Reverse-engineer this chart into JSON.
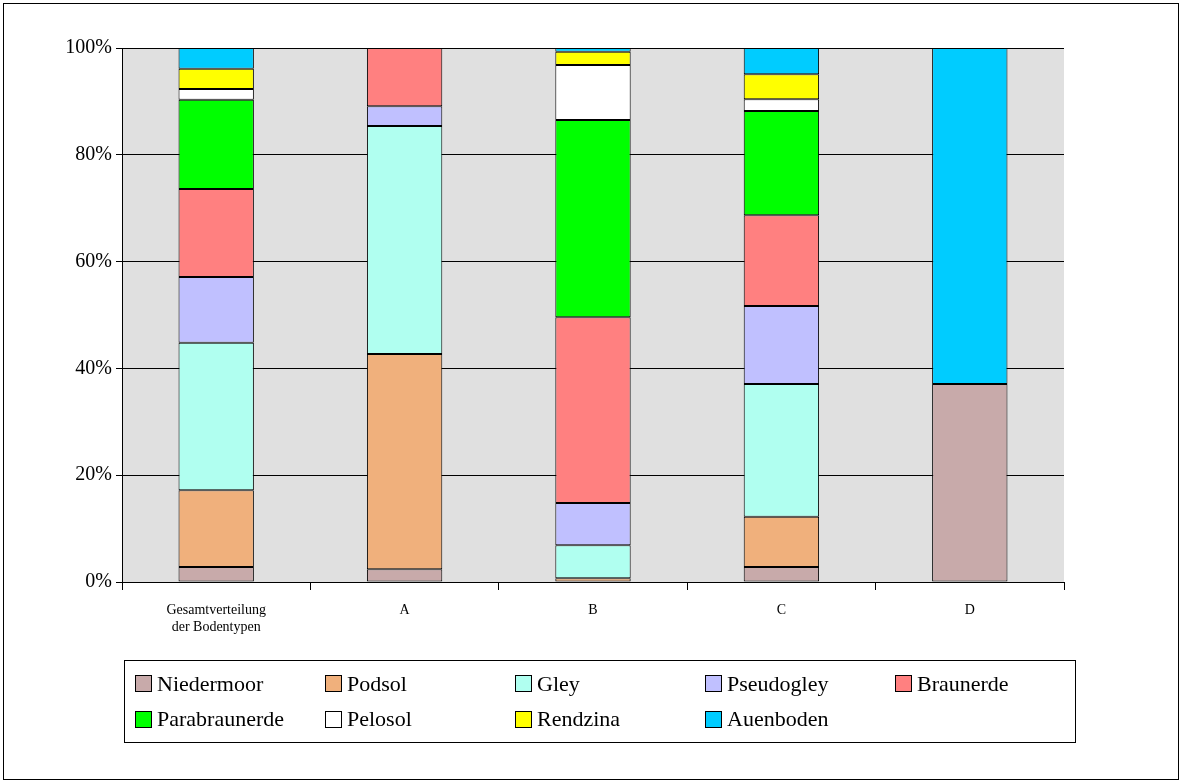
{
  "chart_data": {
    "type": "bar",
    "stacked": true,
    "categories": [
      "Gesamtverteilung der Bodentypen",
      "A",
      "B",
      "C",
      "D"
    ],
    "series": [
      {
        "name": "Niedermoor",
        "color": "#c8aaaa",
        "values": [
          2.8,
          2.4,
          0,
          2.8,
          37.1
        ]
      },
      {
        "name": "Podsol",
        "color": "#f0b07c",
        "values": [
          14.4,
          40.3,
          0.7,
          9.4,
          0
        ]
      },
      {
        "name": "Gley",
        "color": "#b0fff0",
        "values": [
          27.6,
          42.7,
          6.2,
          24.9,
          0
        ]
      },
      {
        "name": "Pseudogley",
        "color": "#c0c0ff",
        "values": [
          12.3,
          3.7,
          7.9,
          14.6,
          0
        ]
      },
      {
        "name": "Braunerde",
        "color": "#ff8080",
        "values": [
          16.5,
          10.9,
          34.8,
          17.0,
          0
        ]
      },
      {
        "name": "Parabraunerde",
        "color": "#00ff00",
        "values": [
          16.7,
          0,
          36.9,
          19.5,
          0
        ]
      },
      {
        "name": "Pelosol",
        "color": "#ffffff",
        "values": [
          2.0,
          0,
          10.3,
          2.2,
          0
        ]
      },
      {
        "name": "Rendzina",
        "color": "#ffff00",
        "values": [
          3.8,
          0,
          2.5,
          4.7,
          0
        ]
      },
      {
        "name": "Auenboden",
        "color": "#00ccff",
        "values": [
          3.9,
          0,
          0.7,
          4.9,
          62.9
        ]
      }
    ],
    "ylim": [
      0,
      100
    ],
    "yticks": [
      {
        "value": 0,
        "label": "0%"
      },
      {
        "value": 20,
        "label": "20%"
      },
      {
        "value": 40,
        "label": "40%"
      },
      {
        "value": 60,
        "label": "60%"
      },
      {
        "value": 80,
        "label": "80%"
      },
      {
        "value": 100,
        "label": "100%"
      }
    ],
    "grid": "y",
    "legend": "bottom"
  }
}
